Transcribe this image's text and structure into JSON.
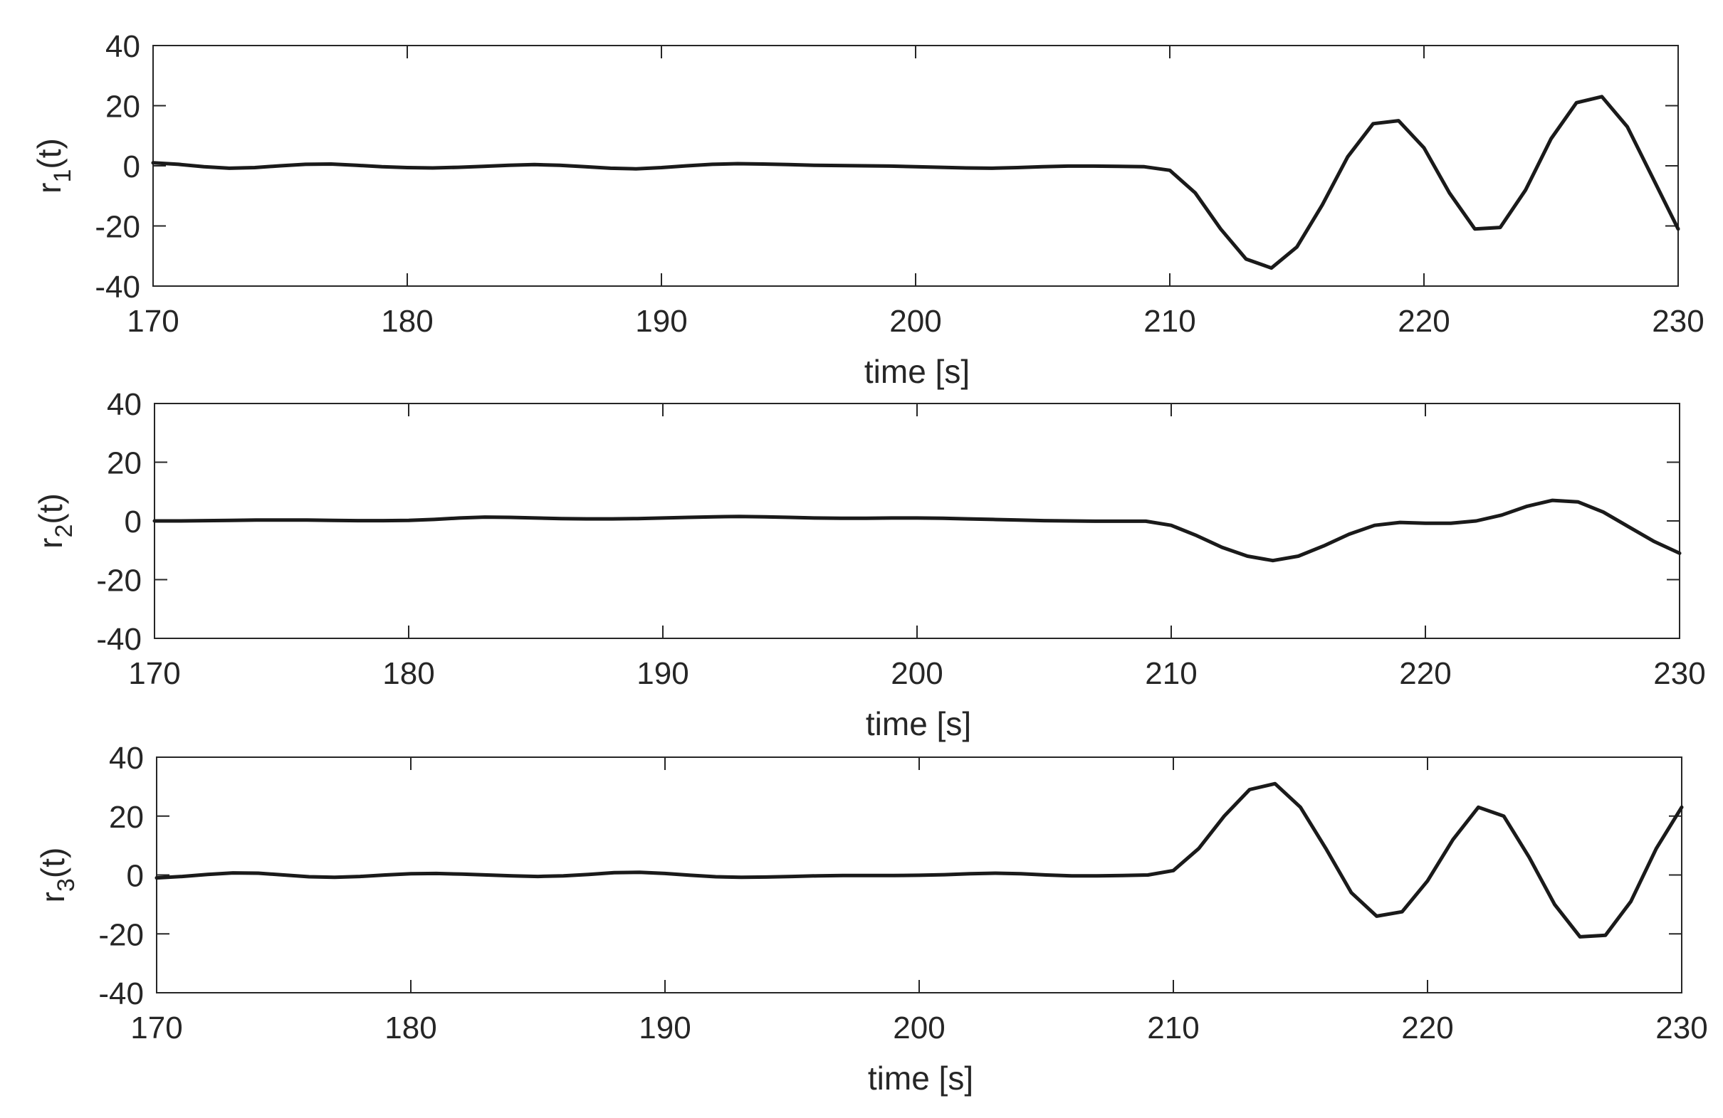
{
  "chart_data": [
    {
      "type": "line",
      "ylabel": "r",
      "ylabel_subscript": "1",
      "ylabel_suffix": "(t)",
      "xlabel": "time [s]",
      "xlim": [
        170,
        230
      ],
      "ylim": [
        -40,
        40
      ],
      "xticks": [
        170,
        180,
        190,
        200,
        210,
        220,
        230
      ],
      "yticks": [
        40,
        20,
        0,
        -20,
        -40
      ],
      "series": [
        {
          "x": [
            170,
            171,
            172,
            173,
            174,
            175,
            176,
            177,
            178,
            179,
            180,
            181,
            182,
            183,
            184,
            185,
            186,
            187,
            188,
            189,
            190,
            191,
            192,
            193,
            194,
            195,
            196,
            197,
            198,
            199,
            200,
            201,
            202,
            203,
            204,
            205,
            206,
            207,
            208,
            209,
            210,
            211,
            212,
            213,
            214,
            215,
            216,
            217,
            218,
            219,
            220,
            221,
            222,
            223,
            224,
            225,
            226,
            227,
            228,
            229,
            230
          ],
          "y": [
            1,
            0.5,
            -0.3,
            -0.8,
            -0.6,
            0,
            0.5,
            0.6,
            0.2,
            -0.3,
            -0.6,
            -0.7,
            -0.5,
            -0.2,
            0.2,
            0.4,
            0.2,
            -0.3,
            -0.8,
            -1,
            -0.6,
            0,
            0.5,
            0.7,
            0.6,
            0.4,
            0.2,
            0.1,
            0,
            -0.1,
            -0.3,
            -0.5,
            -0.7,
            -0.8,
            -0.6,
            -0.3,
            -0.1,
            -0.1,
            -0.2,
            -0.3,
            -1.5,
            -9,
            -21,
            -31,
            -34,
            -27,
            -13,
            3,
            14,
            15,
            6,
            -9,
            -21,
            -20.5,
            -8,
            9,
            21,
            23,
            13,
            -4,
            -21
          ]
        }
      ]
    },
    {
      "type": "line",
      "ylabel": "r",
      "ylabel_subscript": "2",
      "ylabel_suffix": "(t)",
      "xlabel": "time [s]",
      "xlim": [
        170,
        230
      ],
      "ylim": [
        -40,
        40
      ],
      "xticks": [
        170,
        180,
        190,
        200,
        210,
        220,
        230
      ],
      "yticks": [
        40,
        20,
        0,
        -20,
        -40
      ],
      "series": [
        {
          "x": [
            170,
            171,
            172,
            173,
            174,
            175,
            176,
            177,
            178,
            179,
            180,
            181,
            182,
            183,
            184,
            185,
            186,
            187,
            188,
            189,
            190,
            191,
            192,
            193,
            194,
            195,
            196,
            197,
            198,
            199,
            200,
            201,
            202,
            203,
            204,
            205,
            206,
            207,
            208,
            209,
            210,
            211,
            212,
            213,
            214,
            215,
            216,
            217,
            218,
            219,
            220,
            221,
            222,
            223,
            224,
            225,
            226,
            227,
            228,
            229,
            230
          ],
          "y": [
            0,
            0,
            0.1,
            0.2,
            0.3,
            0.3,
            0.3,
            0.2,
            0.1,
            0.1,
            0.2,
            0.5,
            1,
            1.3,
            1.2,
            1,
            0.8,
            0.7,
            0.7,
            0.8,
            1,
            1.2,
            1.4,
            1.5,
            1.4,
            1.2,
            1,
            0.9,
            0.9,
            1,
            1,
            0.9,
            0.7,
            0.5,
            0.3,
            0.1,
            0,
            -0.1,
            -0.1,
            -0.1,
            -1.5,
            -5,
            -9,
            -12,
            -13.5,
            -12,
            -8.5,
            -4.5,
            -1.5,
            -0.5,
            -0.8,
            -0.8,
            0,
            2,
            5,
            7,
            6.5,
            3,
            -2,
            -7,
            -11
          ]
        }
      ]
    },
    {
      "type": "line",
      "ylabel": "r",
      "ylabel_subscript": "3",
      "ylabel_suffix": "(t)",
      "xlabel": "time [s]",
      "xlim": [
        170,
        230
      ],
      "ylim": [
        -40,
        40
      ],
      "xticks": [
        170,
        180,
        190,
        200,
        210,
        220,
        230
      ],
      "yticks": [
        40,
        20,
        0,
        -20,
        -40
      ],
      "series": [
        {
          "x": [
            170,
            171,
            172,
            173,
            174,
            175,
            176,
            177,
            178,
            179,
            180,
            181,
            182,
            183,
            184,
            185,
            186,
            187,
            188,
            189,
            190,
            191,
            192,
            193,
            194,
            195,
            196,
            197,
            198,
            199,
            200,
            201,
            202,
            203,
            204,
            205,
            206,
            207,
            208,
            209,
            210,
            211,
            212,
            213,
            214,
            215,
            216,
            217,
            218,
            219,
            220,
            221,
            222,
            223,
            224,
            225,
            226,
            227,
            228,
            229,
            230
          ],
          "y": [
            -1,
            -0.5,
            0.2,
            0.7,
            0.6,
            0,
            -0.6,
            -0.8,
            -0.5,
            0,
            0.4,
            0.5,
            0.3,
            0,
            -0.3,
            -0.5,
            -0.3,
            0.2,
            0.8,
            0.9,
            0.5,
            -0.1,
            -0.6,
            -0.8,
            -0.7,
            -0.5,
            -0.3,
            -0.2,
            -0.2,
            -0.2,
            -0.1,
            0.1,
            0.4,
            0.6,
            0.4,
            0,
            -0.3,
            -0.3,
            -0.2,
            0,
            1.5,
            9,
            20,
            29,
            31,
            23,
            9,
            -6,
            -14,
            -12.5,
            -2,
            12,
            23,
            20,
            6,
            -10,
            -21,
            -20.5,
            -9,
            9,
            23
          ]
        }
      ]
    }
  ]
}
